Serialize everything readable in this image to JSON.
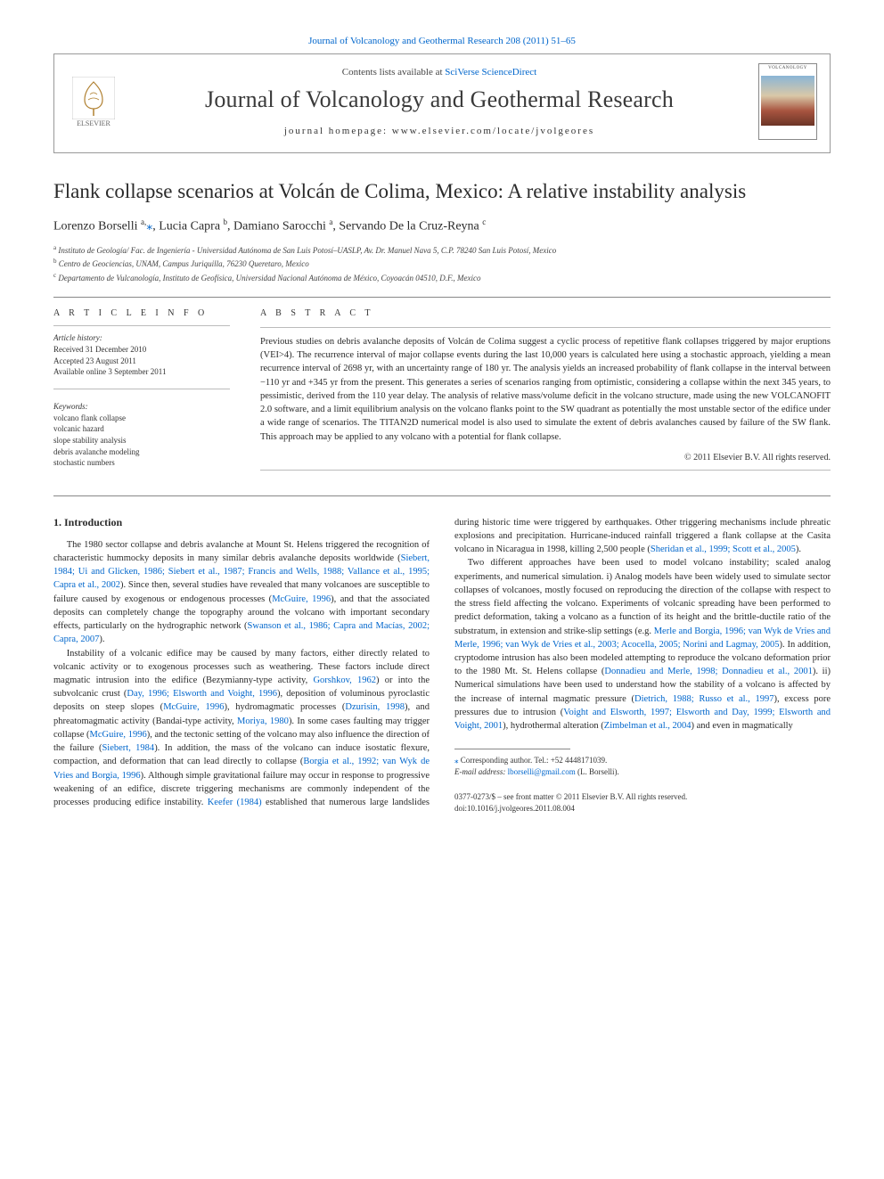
{
  "journal": {
    "top_citation": "Journal of Volcanology and Geothermal Research 208 (2011) 51–65",
    "contents_prefix": "Contents lists available at ",
    "contents_link": "SciVerse ScienceDirect",
    "name": "Journal of Volcanology and Geothermal Research",
    "homepage_label": "journal homepage: www.elsevier.com/locate/jvolgeores",
    "publisher_label": "ELSEVIER",
    "cover_tag": "VOLCANOLOGY"
  },
  "article": {
    "title": "Flank collapse scenarios at Volcán de Colima, Mexico: A relative instability analysis",
    "authors_html": "Lorenzo Borselli <span class='sup'>a,</span><a href='#' class='star'>⁎</a>, Lucia Capra <span class='sup'>b</span>, Damiano Sarocchi <span class='sup'>a</span>, Servando De la Cruz-Reyna <span class='sup'>c</span>",
    "affiliations": [
      {
        "sup": "a",
        "text": "Instituto de Geología/ Fac. de Ingeniería - Universidad Autónoma de San Luis Potosí–UASLP, Av. Dr. Manuel Nava 5, C.P. 78240 San Luis Potosí, Mexico"
      },
      {
        "sup": "b",
        "text": "Centro de Geociencias, UNAM, Campus Juriquilla, 76230 Queretaro, Mexico"
      },
      {
        "sup": "c",
        "text": "Departamento de Vulcanología, Instituto de Geofísica, Universidad Nacional Autónoma de México, Coyoacán 04510, D.F., Mexico"
      }
    ]
  },
  "info": {
    "label": "A R T I C L E   I N F O",
    "history_head": "Article history:",
    "history": [
      "Received 31 December 2010",
      "Accepted 23 August 2011",
      "Available online 3 September 2011"
    ],
    "keywords_head": "Keywords:",
    "keywords": [
      "volcano flank collapse",
      "volcanic hazard",
      "slope stability analysis",
      "debris avalanche modeling",
      "stochastic numbers"
    ]
  },
  "abstract": {
    "label": "A B S T R A C T",
    "text": "Previous studies on debris avalanche deposits of Volcán de Colima suggest a cyclic process of repetitive flank collapses triggered by major eruptions (VEI>4). The recurrence interval of major collapse events during the last 10,000 years is calculated here using a stochastic approach, yielding a mean recurrence interval of 2698 yr, with an uncertainty range of 180 yr. The analysis yields an increased probability of flank collapse in the interval between −110 yr and +345 yr from the present. This generates a series of scenarios ranging from optimistic, considering a collapse within the next 345 years, to pessimistic, derived from the 110 year delay. The analysis of relative mass/volume deficit in the volcano structure, made using the new VOLCANOFIT 2.0 software, and a limit equilibrium analysis on the volcano flanks point to the SW quadrant as potentially the most unstable sector of the edifice under a wide range of scenarios. The TITAN2D numerical model is also used to simulate the extent of debris avalanches caused by failure of the SW flank. This approach may be applied to any volcano with a potential for flank collapse.",
    "copyright": "© 2011 Elsevier B.V. All rights reserved."
  },
  "body": {
    "heading": "1. Introduction",
    "p1_pre": "The 1980 sector collapse and debris avalanche at Mount St. Helens triggered the recognition of characteristic hummocky deposits in many similar debris avalanche deposits worldwide (",
    "p1_cite1": "Siebert, 1984; Ui and Glicken, 1986; Siebert et al., 1987; Francis and Wells, 1988; Vallance et al., 1995; Capra et al., 2002",
    "p1_mid1": "). Since then, several studies have revealed that many volcanoes are susceptible to failure caused by exogenous or endogenous processes (",
    "p1_cite2": "McGuire, 1996",
    "p1_mid2": "), and that the associated deposits can completely change the topography around the volcano with important secondary effects, particularly on the hydrographic network (",
    "p1_cite3": "Swanson et al., 1986; Capra and Macías, 2002; Capra, 2007",
    "p1_post": ").",
    "p2_pre": "Instability of a volcanic edifice may be caused by many factors, either directly related to volcanic activity or to exogenous processes such as weathering. These factors include direct magmatic intrusion into the edifice (Bezymianny-type activity, ",
    "p2_cite1": "Gorshkov, 1962",
    "p2_mid1": ") or into the subvolcanic crust (",
    "p2_cite2": "Day, 1996; Elsworth and Voight, 1996",
    "p2_mid2": "), deposition of voluminous pyroclastic deposits on steep slopes (",
    "p2_cite3": "McGuire, 1996",
    "p2_mid3": "), hydromagmatic processes (",
    "p2_cite4": "Dzurisin, 1998",
    "p2_mid4": "), and phreatomagmatic activity (Bandai-type activity, ",
    "p2_cite5": "Moriya, 1980",
    "p2_mid5": "). In some cases faulting may trigger collapse (",
    "p2_cite6": "McGuire, 1996",
    "p2_mid6": "), and the tectonic setting of the volcano may also influence the direction of the failure (",
    "p2_cite7": "Siebert, 1984",
    "p2_mid7": "). In addition, the mass of the volcano can induce isostatic flexure, compaction, and deformation that can lead directly to collapse (",
    "p2_cite8": "Borgia et al., 1992; van Wyk de Vries and Borgia, 1996",
    "p2_mid8": "). Although simple gravitational failure may occur in response to progressive weakening of an edifice, discrete triggering mechanisms are commonly independent of the processes producing edifice instability. ",
    "p2_cite9": "Keefer (1984)",
    "p2_mid9": " established that numerous large landslides during historic time were triggered by earthquakes. Other triggering mechanisms include phreatic explosions and precipitation. Hurricane-induced rainfall triggered a flank collapse at the Casita volcano in Nicaragua in 1998, killing 2,500 people (",
    "p2_cite10": "Sheridan et al., 1999; Scott et al., 2005",
    "p2_post": ").",
    "p3_pre": "Two different approaches have been used to model volcano instability; scaled analog experiments, and numerical simulation. i) Analog models have been widely used to simulate sector collapses of volcanoes, mostly focused on reproducing the direction of the collapse with respect to the stress field affecting the volcano. Experiments of volcanic spreading have been performed to predict deformation, taking a volcano as a function of its height and the brittle-ductile ratio of the substratum, in extension and strike-slip settings (e.g. ",
    "p3_cite1": "Merle and Borgia, 1996; van Wyk de Vries and Merle, 1996; van Wyk de Vries et al., 2003; Acocella, 2005; Norini and Lagmay, 2005",
    "p3_mid1": "). In addition, cryptodome intrusion has also been modeled attempting to reproduce the volcano deformation prior to the 1980 Mt. St. Helens collapse (",
    "p3_cite2": "Donnadieu and Merle, 1998; Donnadieu et al., 2001",
    "p3_mid2": "). ii) Numerical simulations have been used to understand how the stability of a volcano is affected by the increase of internal magmatic pressure (",
    "p3_cite3": "Dietrich, 1988; Russo et al., 1997",
    "p3_mid3": "), excess pore pressures due to intrusion (",
    "p3_cite4": "Voight and Elsworth, 1997; Elsworth and Day, 1999; Elsworth and Voight, 2001",
    "p3_mid4": "), hydrothermal alteration (",
    "p3_cite5": "Zimbelman et al., 2004",
    "p3_post": ") and even in magmatically"
  },
  "footnote": {
    "corr": "Corresponding author. Tel.: +52 4448171039.",
    "email_label": "E-mail address: ",
    "email": "lborselli@gmail.com",
    "email_suffix": " (L. Borselli)."
  },
  "bottom": {
    "issn": "0377-0273/$ – see front matter © 2011 Elsevier B.V. All rights reserved.",
    "doi": "doi:10.1016/j.jvolgeores.2011.08.004"
  },
  "colors": {
    "link": "#0066cc",
    "text": "#2a2a2a",
    "rule": "#888888"
  }
}
